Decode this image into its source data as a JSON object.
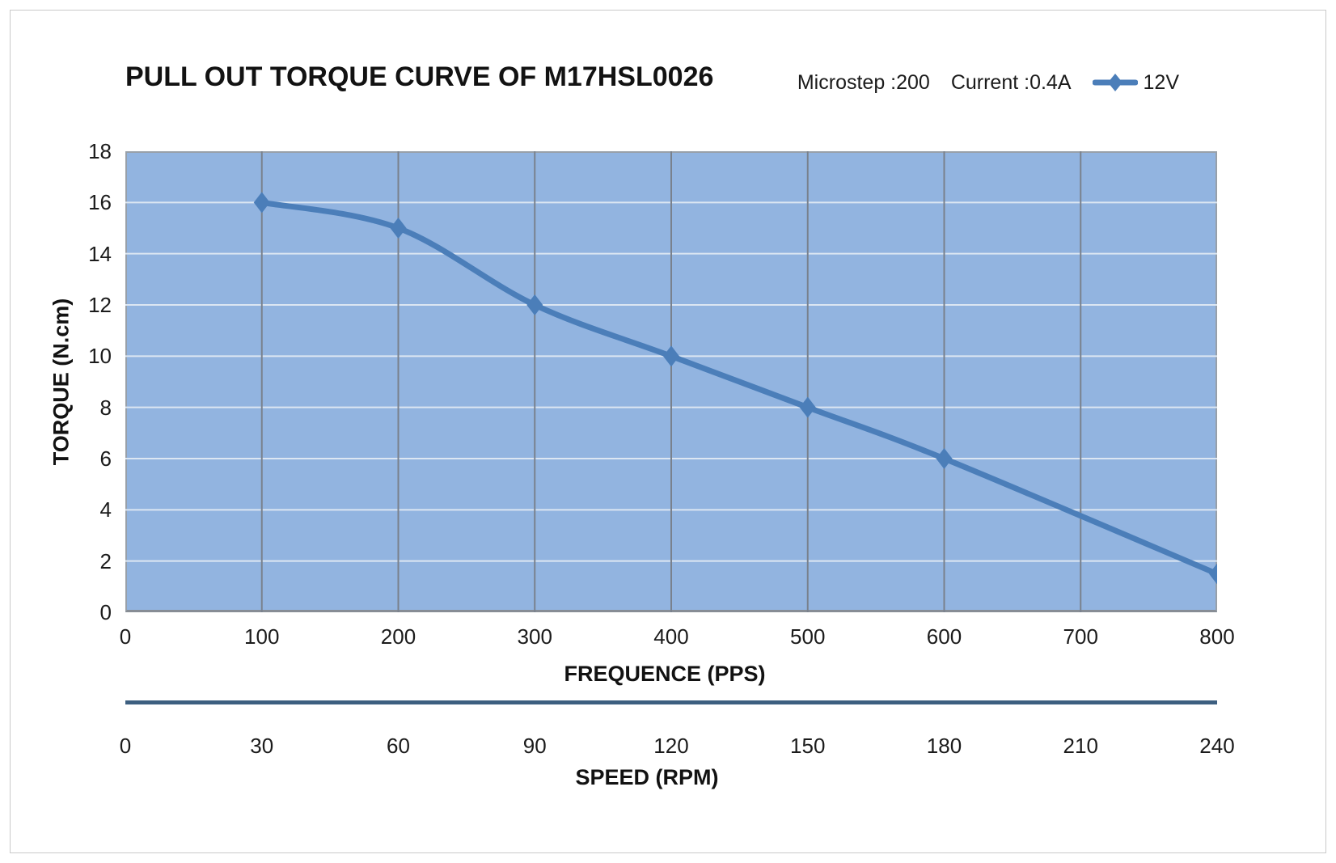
{
  "header": {
    "title": "PULL OUT TORQUE CURVE OF M17HSL0026"
  },
  "legend": {
    "microstep_label": "Microstep :200",
    "current_label": "Current :0.4A",
    "series_label": "12V"
  },
  "chart_data": {
    "type": "line",
    "title": "PULL OUT TORQUE CURVE OF M17HSL0026",
    "xlabel": "FREQUENCE (PPS)",
    "ylabel": "TORQUE (N.cm)",
    "x2label": "SPEED (RPM)",
    "xlim": [
      0,
      800
    ],
    "ylim": [
      0,
      18
    ],
    "x_ticks": [
      0,
      100,
      200,
      300,
      400,
      500,
      600,
      700,
      800
    ],
    "y_ticks": [
      0,
      2,
      4,
      6,
      8,
      10,
      12,
      14,
      16,
      18
    ],
    "x2_ticks": [
      0,
      30,
      60,
      90,
      120,
      150,
      180,
      210,
      240
    ],
    "grid": "on",
    "legend_position": "top-right",
    "smooth": true,
    "series": [
      {
        "name": "12V",
        "x": [
          100,
          200,
          300,
          400,
          500,
          600,
          800
        ],
        "y": [
          16,
          15,
          12,
          10,
          8,
          6,
          1.5
        ],
        "marker": "diamond"
      }
    ],
    "colors": {
      "plot_background": "#92B4E0",
      "line": "#4B7EB9",
      "vertical_grid": "#79818d",
      "horizontal_grid": "#dce6f2",
      "separator_line": "#3D5F80",
      "text": "#1b1b1b"
    }
  }
}
